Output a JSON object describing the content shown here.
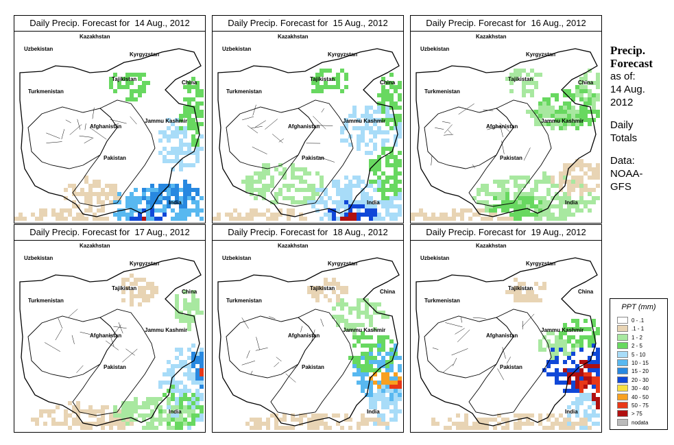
{
  "panels": [
    {
      "title": "Daily Precip. Forecast for  14 Aug., 2012"
    },
    {
      "title": "Daily Precip. Forecast for  15 Aug., 2012"
    },
    {
      "title": "Daily Precip. Forecast for  16 Aug., 2012"
    },
    {
      "title": "Daily Precip. Forecast for  17 Aug., 2012"
    },
    {
      "title": "Daily Precip. Forecast for  18 Aug., 2012"
    },
    {
      "title": "Daily Precip. Forecast for  19 Aug., 2012"
    }
  ],
  "places": [
    "Kazakhstan",
    "Uzbekistan",
    "Kyrgyzstan",
    "Tajikistan",
    "China",
    "Turkmenistan",
    "Afghanistan",
    "Jammu Kashmir",
    "Pakistan",
    "India"
  ],
  "side": {
    "heading1": "Precip.",
    "heading2": "Forecast",
    "line1": "as of:",
    "line2": "14 Aug.",
    "line3": "2012",
    "line4": "Daily",
    "line5": "Totals",
    "line6": "Data:",
    "line7": "NOAA-",
    "line8": "GFS"
  },
  "legend": {
    "title": "PPT (mm)",
    "items": [
      {
        "label": "0 - .1",
        "color": "#ffffff"
      },
      {
        "label": ".1 - 1",
        "color": "#e8d4b4"
      },
      {
        "label": "1 - 2",
        "color": "#a8e8a0"
      },
      {
        "label": "2 - 5",
        "color": "#68d860"
      },
      {
        "label": "5 - 10",
        "color": "#a8dcf8"
      },
      {
        "label": "10 - 15",
        "color": "#58b8f0"
      },
      {
        "label": "15 - 20",
        "color": "#2888e0"
      },
      {
        "label": "20 - 30",
        "color": "#1048d8"
      },
      {
        "label": "30 - 40",
        "color": "#f8e040"
      },
      {
        "label": "40 - 50",
        "color": "#f8a020"
      },
      {
        "label": "50 - 75",
        "color": "#e83818"
      },
      {
        "label": "> 75",
        "color": "#b01010"
      },
      {
        "label": "nodata",
        "color": "#bbbbbb"
      }
    ]
  }
}
